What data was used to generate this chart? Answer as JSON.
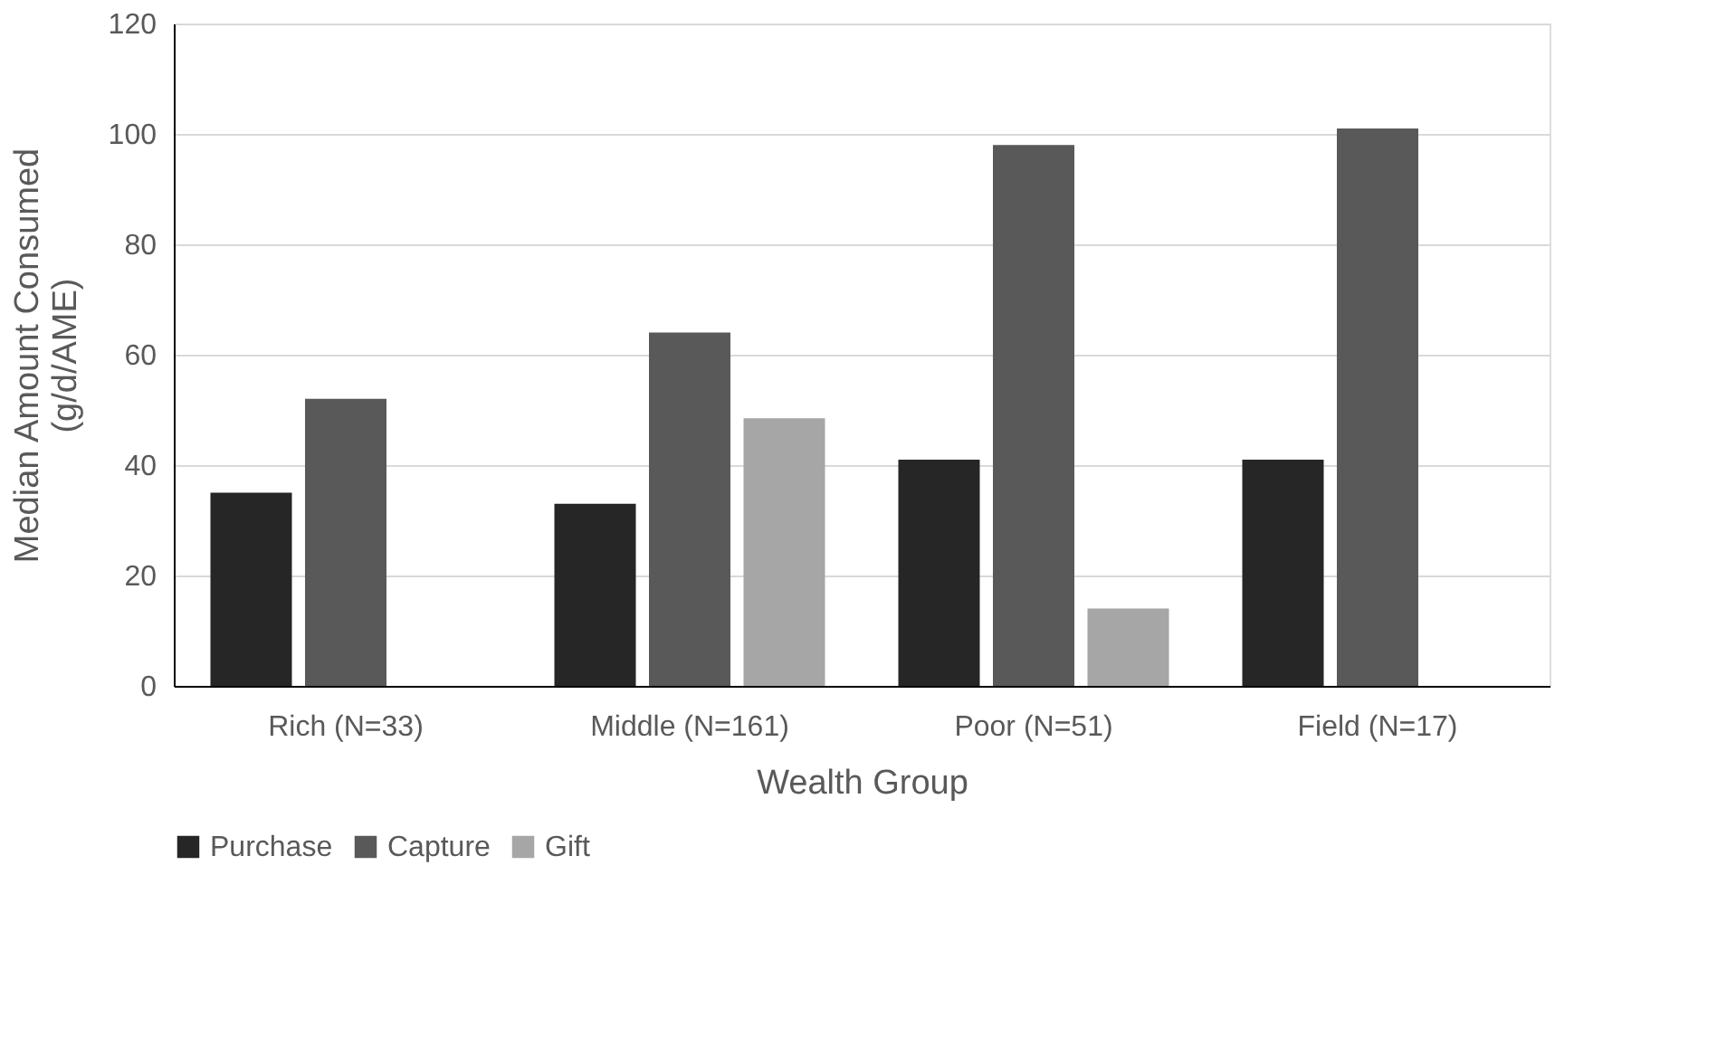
{
  "chart_data": {
    "type": "bar",
    "xlabel": "Wealth Group",
    "ylabel": "Median Amount Consumed (g/d/AME)",
    "categories": [
      "Rich (N=33)",
      "Middle (N=161)",
      "Poor (N=51)",
      "Field (N=17)"
    ],
    "series": [
      {
        "name": "Purchase",
        "color": "#262626",
        "values": [
          35,
          33,
          41,
          41
        ]
      },
      {
        "name": "Capture",
        "color": "#595959",
        "values": [
          52,
          64,
          98,
          101
        ]
      },
      {
        "name": "Gift",
        "color": "#a6a6a6",
        "values": [
          null,
          48.5,
          14,
          null
        ]
      }
    ],
    "ylim": [
      0,
      120
    ],
    "yticks": [
      0,
      20,
      40,
      60,
      80,
      100,
      120
    ],
    "grid": "y",
    "legend": "bottom"
  }
}
